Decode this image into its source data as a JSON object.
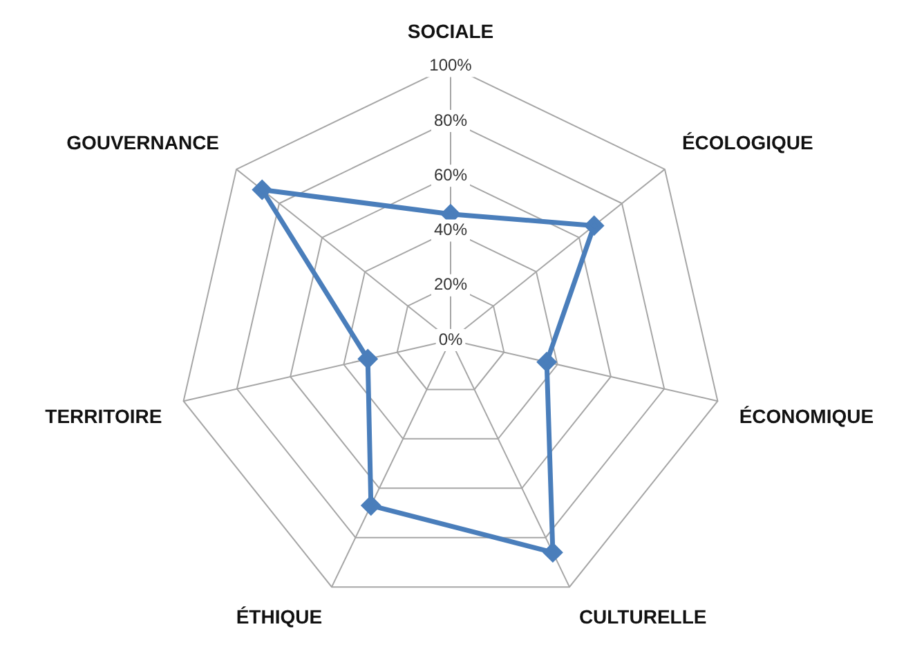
{
  "chart_data": {
    "type": "radar",
    "categories": [
      "SOCIALE",
      "ÉCOLOGIQUE",
      "ÉCONOMIQUE",
      "CULTURELLE",
      "ÉTHIQUE",
      "TERRITOIRE",
      "GOUVERNANCE"
    ],
    "series": [
      {
        "color": "#4a7ebb",
        "values": [
          46,
          67,
          36,
          86,
          67,
          31,
          88
        ]
      }
    ],
    "ylim": [
      0,
      100
    ],
    "yticks": [
      {
        "value": 0,
        "label": "0%"
      },
      {
        "value": 20,
        "label": "20%"
      },
      {
        "value": 40,
        "label": "40%"
      },
      {
        "value": 60,
        "label": "60%"
      },
      {
        "value": 80,
        "label": "80%"
      },
      {
        "value": 100,
        "label": "100%"
      }
    ],
    "grid": true,
    "legend": false,
    "marker": "diamond",
    "line_style": "solid"
  }
}
